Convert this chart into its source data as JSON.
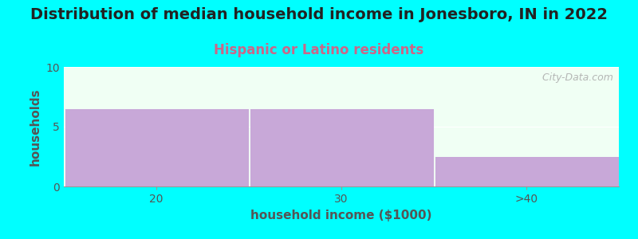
{
  "title": "Distribution of median household income in Jonesboro, IN in 2022",
  "subtitle": "Hispanic or Latino residents",
  "xlabel": "household income ($1000)",
  "ylabel": "households",
  "background_color": "#00FFFF",
  "plot_bg_color": "#F0FFF4",
  "bar_color": "#C8A8D8",
  "categories": [
    "20",
    "30",
    ">40"
  ],
  "values": [
    6.5,
    6.5,
    2.5
  ],
  "ylim": [
    0,
    10
  ],
  "yticks": [
    0,
    5,
    10
  ],
  "title_fontsize": 14,
  "subtitle_fontsize": 12,
  "title_color": "#222222",
  "subtitle_color": "#CC6688",
  "axis_label_fontsize": 11,
  "tick_fontsize": 10,
  "tick_color": "#555555",
  "watermark": "  City-Data.com",
  "watermark_color": "#AAAAAA",
  "figure_width": 8.0,
  "figure_height": 3.0,
  "figure_dpi": 100
}
